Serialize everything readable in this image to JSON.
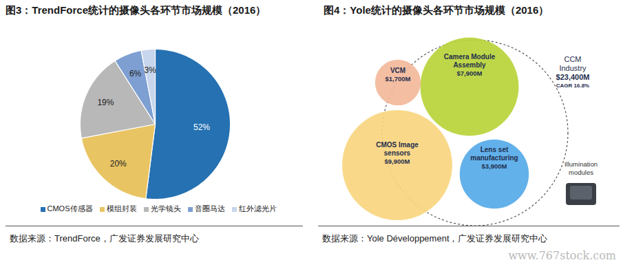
{
  "chart_data": [
    {
      "type": "pie",
      "title": "图3：TrendForce统计的摄像头各环节市场规模（2016）",
      "categories": [
        "CMOS传感器",
        "模组封装",
        "光学镜头",
        "音圈马达",
        "红外滤光片"
      ],
      "values": [
        52,
        20,
        19,
        6,
        3
      ],
      "value_labels": [
        "52%",
        "20%",
        "19%",
        "6%",
        "3%"
      ],
      "colors": [
        "#2571b2",
        "#e9c463",
        "#b8b8b8",
        "#7e9fd2",
        "#c7d6ec"
      ],
      "data_labels": true,
      "legend": "bottom",
      "source": "数据来源：TrendForce，广发证券发展研究中心"
    },
    {
      "type": "bubble",
      "title": "图4：Yole统计的摄像头各环节市场规模（2016）",
      "categories": [
        "VCM",
        "Camera Module Assembly",
        "CMOS Image sensors",
        "Lens set manufacturing"
      ],
      "values": [
        1700,
        7900,
        9900,
        3900
      ],
      "value_labels": [
        "$1,700M",
        "$7,900M",
        "$9,900M",
        "$3,900M"
      ],
      "colors": [
        "#f3b89b",
        "#b8d43a",
        "#f8d67f",
        "#56aae8"
      ],
      "total": {
        "name": "CCM Industry",
        "value": 23400,
        "value_label": "$23,400M",
        "note": "CAGR 16.8%"
      },
      "extra_label": "Illumination modules",
      "source": "数据来源：Yole Développement，广发证券发展研究中心"
    }
  ],
  "watermark": "www.767stock.com"
}
